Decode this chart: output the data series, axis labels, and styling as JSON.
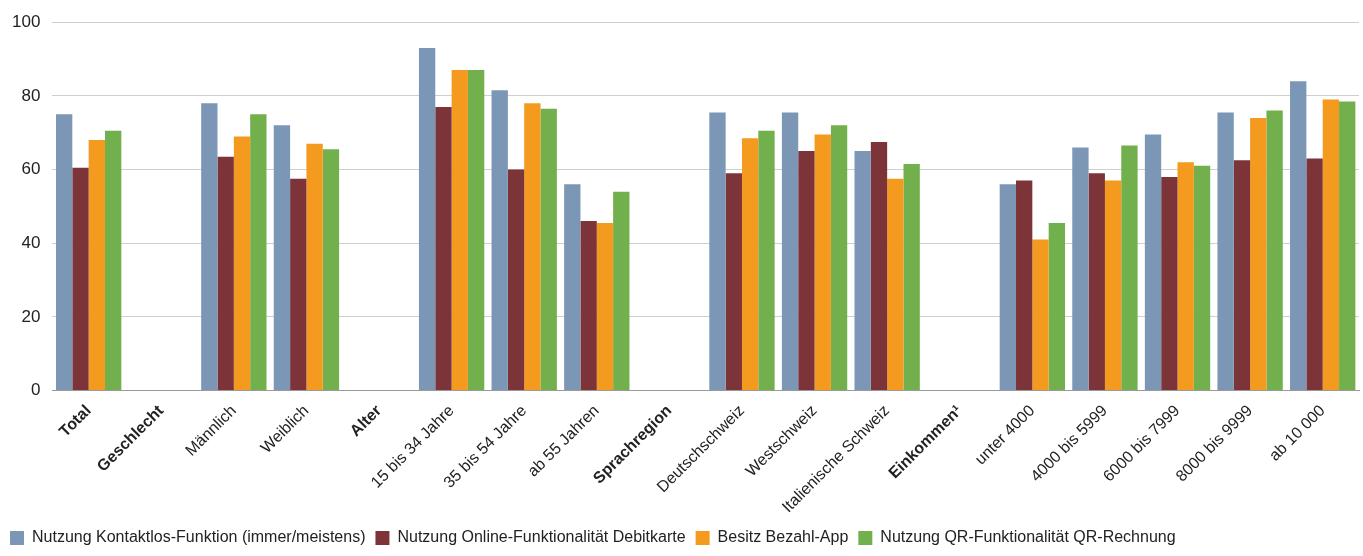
{
  "chart_data": {
    "type": "bar",
    "categories": [
      "Total",
      "Geschlecht",
      "Männlich",
      "Weiblich",
      "Alter",
      "15 bis 34 Jahre",
      "35 bis 54 Jahre",
      "ab 55 Jahren",
      "Sprachregion",
      "Deutschschweiz",
      "Westschweiz",
      "Italienische Schweiz",
      "Einkommen¹",
      "unter 4000",
      "4000 bis 5999",
      "6000 bis 7999",
      "8000 bis 9999",
      "ab 10 000"
    ],
    "series": [
      {
        "name": "Nutzung Kontaktlos-Funktion (immer/meistens)",
        "color": "#7b97b5",
        "values": [
          75,
          null,
          78,
          72,
          null,
          93,
          81.5,
          56,
          null,
          75.5,
          75.5,
          65,
          null,
          56,
          66,
          69.5,
          75.5,
          84
        ]
      },
      {
        "name": "Nutzung Online-Funktionalität Debitkarte",
        "color": "#7d3439",
        "values": [
          60.5,
          null,
          63.5,
          57.5,
          null,
          77,
          60,
          46,
          null,
          59,
          65,
          67.5,
          null,
          57,
          59,
          58,
          62.5,
          63
        ]
      },
      {
        "name": "Besitz Bezahl-App",
        "color": "#f39a1f",
        "values": [
          68,
          null,
          69,
          67,
          null,
          87,
          78,
          45.5,
          null,
          68.5,
          69.5,
          57.5,
          null,
          41,
          57,
          62,
          74,
          79
        ]
      },
      {
        "name": "Nutzung QR-Funktionalität QR-Rechnung",
        "color": "#72b04d",
        "values": [
          70.5,
          null,
          75,
          65.5,
          null,
          87,
          76.5,
          54,
          null,
          70.5,
          72,
          61.5,
          null,
          45.5,
          66.5,
          61,
          76,
          78.5
        ]
      }
    ],
    "ylim": [
      0,
      100
    ],
    "yticks": [
      0,
      20,
      40,
      60,
      80,
      100
    ],
    "grid": "y",
    "legend": "bottom left"
  }
}
